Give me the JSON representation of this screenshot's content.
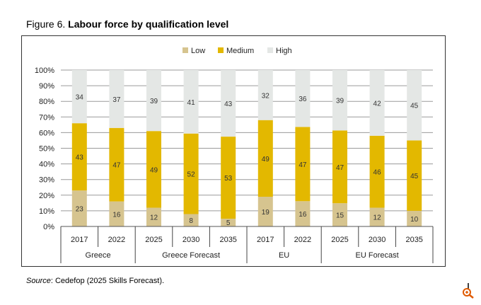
{
  "title": {
    "prefix": "Figure 6.",
    "main": "Labour force by qualification level"
  },
  "source": {
    "label": "Source",
    "text": ": Cedefop (2025 Skills Forecast)."
  },
  "chart_data": {
    "type": "bar",
    "stacked": true,
    "title": "Labour force by qualification level",
    "legend_position": "top",
    "categories": [
      "2017",
      "2022",
      "2025",
      "2030",
      "2035",
      "2017",
      "2022",
      "2025",
      "2030",
      "2035"
    ],
    "groups": [
      {
        "label": "Greece",
        "span": 2
      },
      {
        "label": "Greece Forecast",
        "span": 3
      },
      {
        "label": "EU",
        "span": 2
      },
      {
        "label": "EU Forecast",
        "span": 3
      }
    ],
    "series": [
      {
        "name": "Low",
        "color": "#d6c48f",
        "values": [
          23,
          16,
          12,
          8,
          5,
          19,
          16,
          15,
          12,
          10
        ]
      },
      {
        "name": "Medium",
        "color": "#e3b800",
        "values": [
          43,
          47,
          49,
          52,
          53,
          49,
          47,
          47,
          46,
          45
        ]
      },
      {
        "name": "High",
        "color": "#e4e7e5",
        "values": [
          34,
          37,
          39,
          41,
          43,
          32,
          36,
          39,
          42,
          45
        ]
      }
    ],
    "yticks": [
      "0%",
      "10%",
      "20%",
      "30%",
      "40%",
      "50%",
      "60%",
      "70%",
      "80%",
      "90%",
      "100%"
    ],
    "ylim": [
      0,
      100
    ],
    "grid": true
  }
}
